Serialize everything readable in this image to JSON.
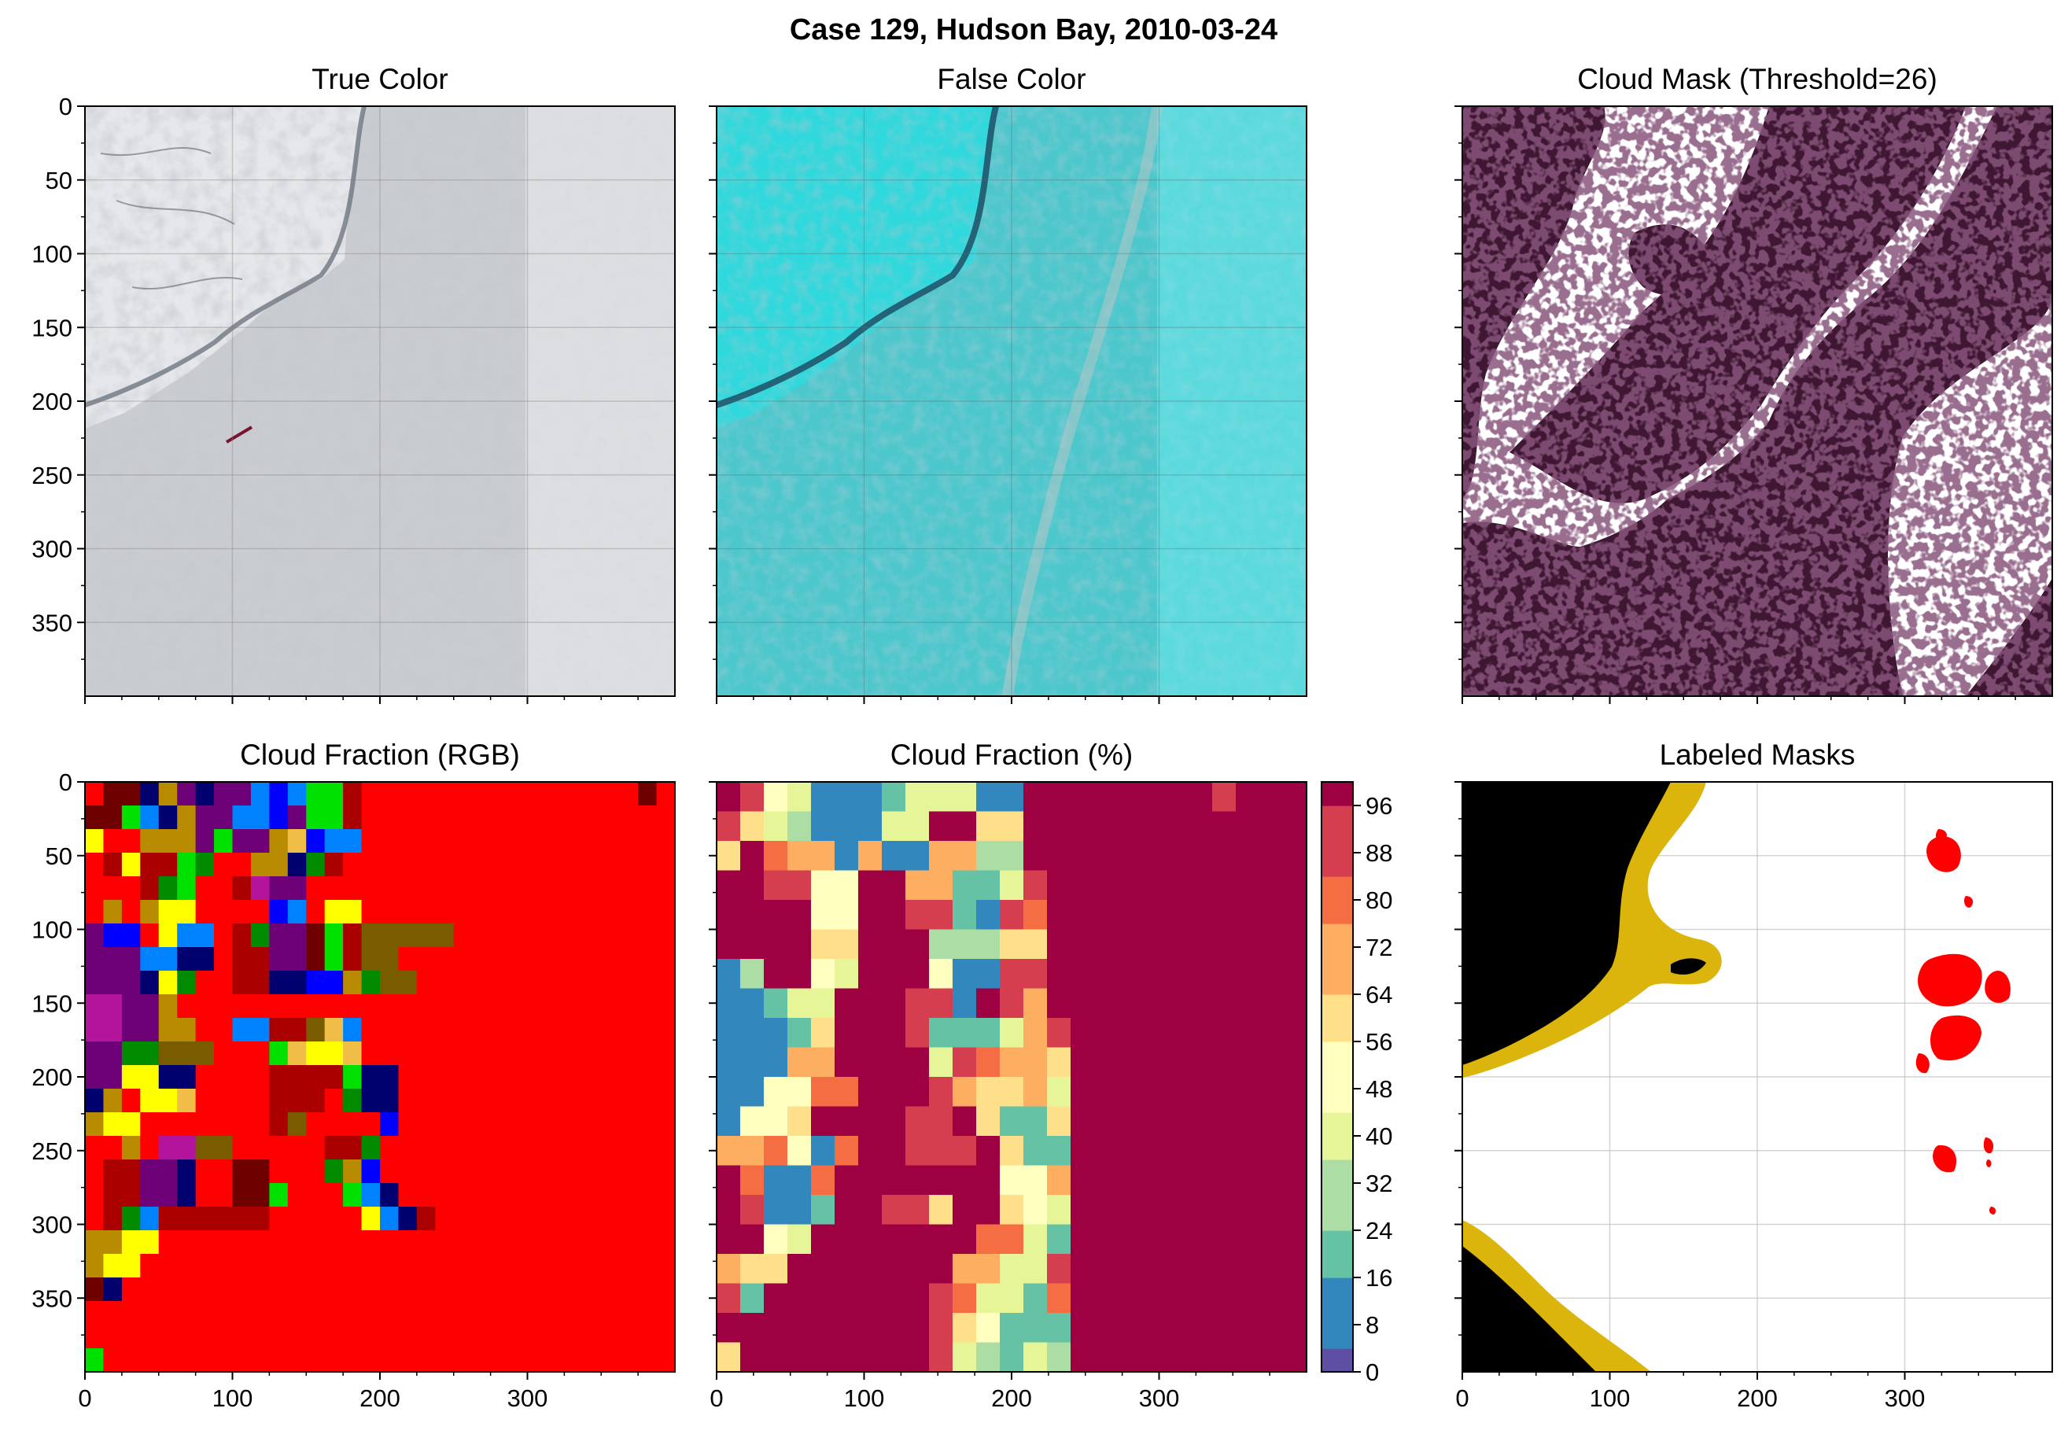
{
  "figure": {
    "suptitle": "Case 129, Hudson Bay, 2010-03-24"
  },
  "panels": {
    "true_color": {
      "title": "True Color"
    },
    "false_color": {
      "title": "False Color"
    },
    "cloud_mask": {
      "title": "Cloud Mask (Threshold=26)"
    },
    "cf_rgb": {
      "title": "Cloud Fraction (RGB)"
    },
    "cf_pct": {
      "title": "Cloud Fraction (%)"
    },
    "labeled": {
      "title": "Labeled Masks"
    }
  },
  "chart_data": [
    {
      "type": "heatmap",
      "title": "True Color",
      "xlim": [
        0,
        400
      ],
      "ylim": [
        400,
        0
      ],
      "xticks": [
        0,
        100,
        200,
        300
      ],
      "yticks": [
        0,
        50,
        100,
        150,
        200,
        250,
        300,
        350
      ],
      "xticklabels_visible": false,
      "yticklabels_visible": true,
      "grid": true
    },
    {
      "type": "heatmap",
      "title": "False Color",
      "xlim": [
        0,
        400
      ],
      "ylim": [
        400,
        0
      ],
      "xticks": [
        0,
        100,
        200,
        300
      ],
      "yticks": [
        0,
        50,
        100,
        150,
        200,
        250,
        300,
        350
      ],
      "xticklabels_visible": false,
      "yticklabels_visible": false,
      "grid": true
    },
    {
      "type": "heatmap",
      "title": "Cloud Mask (Threshold=26)",
      "xlim": [
        0,
        400
      ],
      "ylim": [
        400,
        0
      ],
      "colors": {
        "cloud": "#3f1733",
        "clear": "#ffffff"
      },
      "xticklabels_visible": false,
      "yticklabels_visible": false,
      "grid": false
    },
    {
      "type": "heatmap",
      "title": "Cloud Fraction (RGB)",
      "xlim": [
        0,
        400
      ],
      "ylim": [
        400,
        0
      ],
      "cell_size": 16,
      "xticks": [
        0,
        100,
        200,
        300
      ],
      "yticks": [
        0,
        50,
        100,
        150,
        200,
        250,
        300,
        350
      ],
      "xticklabels": [
        "0",
        "100",
        "200",
        "300"
      ],
      "yticklabels": [
        "0",
        "50",
        "100",
        "150",
        "200",
        "250",
        "300",
        "350"
      ],
      "palette": {
        "R": "#ff0000",
        "D": "#aa0000",
        "M": "#6e0000",
        "G": "#008b00",
        "L": "#00e100",
        "B": "#0000ff",
        "N": "#00006e",
        "S": "#0082ff",
        "Y": "#ffff00",
        "O": "#b88b00",
        "E": "#7a5c00",
        "T": "#f0be46",
        "P": "#b4149b",
        "V": "#6e0078"
      },
      "rows": [
        "RMMNOVNVVSBSLLDRRRRRRRRRRRRRRRMR",
        "MMLSNOVVSSBVLLDRRRRRRRRRRRRRRRRR",
        "YRROOOVLVVOTBSSRRRRRRRRRRRRRRRRR",
        "RDYDDLGRROONGDRRRRRRRRRRRRRRRRRR",
        "RRRDGLRRDPVVRRRRRRRRRRRRRRRRRRRR",
        "ROROYYRRRRBSRYYRRRRRRRRRRRRRRRRR",
        "VBBRYSSRDGVVMLDEEEEERRRRRRRRRRRR",
        "VVVSSNNRDDVVMLDEERRRRRRRRRRRRRRR",
        "VVVNYGRRDDNNBBOGEERRRRRRRRRRRRRR",
        "PPVVORRRRRRRRRRRRRRRRRRRRRRRRRRR",
        "PPVVOORRSSDDETSRRRRRRRRRRRRRRRRR",
        "VVGGEEERRRLTYYTRRRRRRRRRRRRRRRRR",
        "VVYYNNRRRRDDDDLNNRRRRRRRRRRRRRRR",
        "NORYYTRRRRDDDRGNNRRRRRRRRRRRRRRR",
        "OYYRRRRRRRDERRRRBRRRRRRRRRRRRRRR",
        "RRORPPEERRRRRDDGRRRRRRRRRRRRRRRR",
        "RDDVVNRRMMRRRGOBRRRRRRRRRRRRRRRR",
        "RDDVVNRRMMLRRRLSNRRRRRRRRRRRRRRR",
        "RDGSDDDDDDRRRRRYSNDRRRRRRRRRRRRR",
        "OOYYRRRRRRRRRRRRRRRRRRRRRRRRRRRR",
        "OYYRRRRRRRRRRRRRRRRRRRRRRRRRRRRR",
        "MNRRRRRRRRRRRRRRRRRRRRRRRRRRRRRR",
        "RRRRRRRRRRRRRRRRRRRRRRRRRRRRRRRR",
        "RRRRRRRRRRRRRRRRRRRRRRRRRRRRRRRR",
        "LRRRRRRRRRRRRRRRRRRRRRRRRRRRRRRR"
      ]
    },
    {
      "type": "heatmap",
      "title": "Cloud Fraction (%)",
      "xlim": [
        0,
        400
      ],
      "ylim": [
        400,
        0
      ],
      "cell_size": 16,
      "xticklabels": [
        "0",
        "100",
        "200",
        "300"
      ],
      "values": [
        [
          95,
          85,
          50,
          35,
          12,
          8,
          10,
          20,
          40,
          35,
          40,
          12,
          12,
          100,
          100,
          100,
          100,
          100,
          100,
          100,
          100,
          88,
          100,
          100,
          100
        ],
        [
          85,
          60,
          40,
          30,
          12,
          8,
          10,
          40,
          40,
          100,
          100,
          55,
          55,
          100,
          100,
          100,
          100,
          100,
          100,
          100,
          100,
          100,
          100,
          100,
          100
        ],
        [
          60,
          100,
          80,
          72,
          72,
          8,
          72,
          10,
          10,
          72,
          72,
          30,
          30,
          100,
          100,
          100,
          100,
          100,
          100,
          100,
          100,
          100,
          100,
          100,
          100
        ],
        [
          100,
          100,
          85,
          85,
          45,
          45,
          100,
          100,
          72,
          72,
          15,
          15,
          40,
          88,
          100,
          100,
          100,
          100,
          100,
          100,
          100,
          100,
          100,
          100,
          100
        ],
        [
          100,
          100,
          100,
          100,
          50,
          50,
          100,
          100,
          88,
          88,
          15,
          5,
          88,
          80,
          100,
          100,
          100,
          100,
          100,
          100,
          100,
          100,
          100,
          100,
          100
        ],
        [
          100,
          100,
          100,
          100,
          55,
          55,
          100,
          100,
          100,
          30,
          30,
          30,
          60,
          60,
          100,
          100,
          100,
          100,
          100,
          100,
          100,
          100,
          100,
          100,
          100
        ],
        [
          10,
          30,
          100,
          100,
          50,
          40,
          100,
          100,
          100,
          45,
          5,
          5,
          88,
          88,
          100,
          100,
          100,
          100,
          100,
          100,
          100,
          100,
          100,
          100,
          100
        ],
        [
          5,
          5,
          15,
          35,
          35,
          100,
          100,
          100,
          88,
          88,
          5,
          100,
          88,
          72,
          100,
          100,
          100,
          100,
          100,
          100,
          100,
          100,
          100,
          100,
          100
        ],
        [
          5,
          5,
          5,
          20,
          55,
          100,
          100,
          100,
          88,
          15,
          15,
          15,
          40,
          72,
          88,
          100,
          100,
          100,
          100,
          100,
          100,
          100,
          100,
          100,
          100
        ],
        [
          10,
          10,
          5,
          72,
          72,
          100,
          100,
          100,
          100,
          35,
          88,
          80,
          72,
          72,
          60,
          100,
          100,
          100,
          100,
          100,
          100,
          100,
          100,
          100,
          100
        ],
        [
          5,
          5,
          50,
          50,
          80,
          80,
          100,
          100,
          100,
          88,
          72,
          60,
          60,
          72,
          35,
          100,
          100,
          100,
          100,
          100,
          100,
          100,
          100,
          100,
          100
        ],
        [
          10,
          50,
          50,
          60,
          100,
          100,
          100,
          100,
          88,
          88,
          100,
          60,
          20,
          20,
          60,
          100,
          100,
          100,
          100,
          100,
          100,
          100,
          100,
          100,
          100
        ],
        [
          70,
          70,
          80,
          50,
          5,
          80,
          100,
          100,
          88,
          88,
          88,
          100,
          60,
          20,
          20,
          100,
          100,
          100,
          100,
          100,
          100,
          100,
          100,
          100,
          100
        ],
        [
          100,
          80,
          10,
          10,
          80,
          100,
          100,
          100,
          100,
          100,
          100,
          100,
          45,
          45,
          72,
          100,
          100,
          100,
          100,
          100,
          100,
          100,
          100,
          100,
          100
        ],
        [
          100,
          88,
          5,
          5,
          15,
          100,
          100,
          88,
          88,
          55,
          100,
          100,
          55,
          45,
          35,
          100,
          100,
          100,
          100,
          100,
          100,
          100,
          100,
          100,
          100
        ],
        [
          100,
          100,
          45,
          35,
          100,
          100,
          100,
          100,
          100,
          100,
          100,
          80,
          80,
          35,
          20,
          100,
          100,
          100,
          100,
          100,
          100,
          100,
          100,
          100,
          100
        ],
        [
          72,
          55,
          55,
          100,
          100,
          100,
          100,
          100,
          100,
          100,
          72,
          72,
          40,
          40,
          88,
          100,
          100,
          100,
          100,
          100,
          100,
          100,
          100,
          100,
          100
        ],
        [
          88,
          15,
          100,
          100,
          100,
          100,
          100,
          100,
          100,
          88,
          80,
          40,
          40,
          20,
          80,
          100,
          100,
          100,
          100,
          100,
          100,
          100,
          100,
          100,
          100
        ],
        [
          100,
          100,
          100,
          100,
          100,
          100,
          100,
          100,
          100,
          88,
          55,
          50,
          20,
          15,
          20,
          100,
          100,
          100,
          100,
          100,
          100,
          100,
          100,
          100,
          100
        ],
        [
          55,
          100,
          100,
          100,
          100,
          100,
          100,
          100,
          100,
          88,
          40,
          30,
          15,
          35,
          30,
          100,
          100,
          100,
          100,
          100,
          100,
          100,
          100,
          100,
          100
        ]
      ],
      "colorbar": {
        "ticks": [
          0,
          8,
          16,
          24,
          32,
          40,
          48,
          56,
          64,
          72,
          80,
          88,
          96
        ],
        "ticklabels": [
          "0",
          "8",
          "16",
          "24",
          "32",
          "40",
          "48",
          "56",
          "64",
          "72",
          "80",
          "88",
          "96"
        ],
        "range": [
          0,
          100
        ],
        "colormap": [
          "#5e4fa2",
          "#3288bd",
          "#66c2a5",
          "#abdda4",
          "#e6f598",
          "#ffffbf",
          "#fee08b",
          "#fdae61",
          "#f46d43",
          "#d53e4f",
          "#9e0142"
        ]
      }
    },
    {
      "type": "heatmap",
      "title": "Labeled Masks",
      "xlim": [
        0,
        400
      ],
      "ylim": [
        400,
        0
      ],
      "xticklabels": [
        "0",
        "100",
        "200",
        "300"
      ],
      "colors": {
        "land": "#000000",
        "coast": "#dbb40c",
        "floes": "#ff0000",
        "background": "#ffffff"
      },
      "grid": true
    }
  ]
}
